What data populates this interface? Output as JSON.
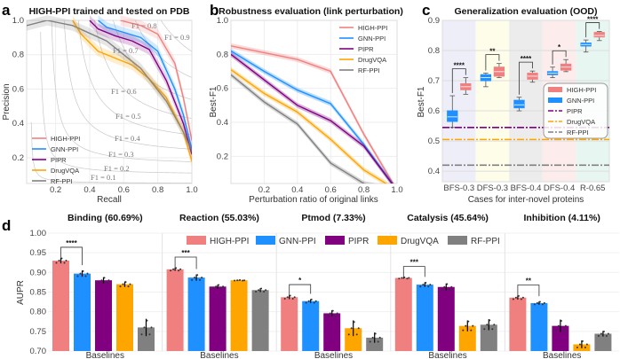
{
  "colors": {
    "HIGH-PPI": "#f08080",
    "GNN-PPI": "#1e90ff",
    "PIPR": "#800080",
    "DrugVQA": "#ffa500",
    "RF-PPI": "#808080"
  },
  "chart_data": [
    {
      "panel": "a",
      "type": "line",
      "title": "HIGH-PPI trained and tested on PDB",
      "xlabel": "Recall",
      "ylabel": "Precision",
      "xlim": [
        0.03,
        1.0
      ],
      "ylim": [
        0.05,
        1.0
      ],
      "xticks": [
        "0.2",
        "0.4",
        "0.6",
        "0.8",
        "1.0"
      ],
      "yticks": [
        "0.2",
        "0.4",
        "0.6",
        "0.8",
        "1.0"
      ],
      "grid": true,
      "legend": "bottom-left",
      "iso_f1": [
        "0.1",
        "0.2",
        "0.3",
        "0.4",
        "0.5",
        "0.6",
        "0.7",
        "0.8",
        "0.9"
      ],
      "iso_f1_prefix": "F1 = ",
      "series": [
        {
          "name": "HIGH-PPI",
          "x": [
            0.58,
            0.7,
            0.8,
            0.9,
            0.95,
            1.0
          ],
          "y": [
            1.0,
            0.97,
            0.92,
            0.75,
            0.55,
            0.3
          ]
        },
        {
          "name": "GNN-PPI",
          "x": [
            0.45,
            0.5,
            0.6,
            0.7,
            0.8,
            0.9,
            0.95,
            1.0
          ],
          "y": [
            1.0,
            0.96,
            0.93,
            0.9,
            0.82,
            0.6,
            0.45,
            0.25
          ]
        },
        {
          "name": "PIPR",
          "x": [
            0.4,
            0.45,
            0.55,
            0.65,
            0.75,
            0.85,
            0.95,
            1.0
          ],
          "y": [
            1.0,
            0.95,
            0.91,
            0.88,
            0.83,
            0.65,
            0.4,
            0.22
          ]
        },
        {
          "name": "DrugVQA",
          "x": [
            0.3,
            0.35,
            0.45,
            0.55,
            0.65,
            0.75,
            0.85,
            0.95,
            1.0
          ],
          "y": [
            1.0,
            0.92,
            0.82,
            0.78,
            0.74,
            0.66,
            0.55,
            0.35,
            0.18
          ]
        },
        {
          "name": "RF-PPI",
          "x": [
            0.03,
            0.15,
            0.3,
            0.5,
            0.7,
            0.85,
            0.95,
            1.0
          ],
          "y": [
            0.97,
            1.0,
            0.97,
            0.88,
            0.72,
            0.53,
            0.35,
            0.24
          ]
        }
      ]
    },
    {
      "panel": "b",
      "type": "line",
      "title": "Robustness evaluation (link perturbation)",
      "xlabel": "Perturbation ratio of original links",
      "ylabel": "Best-F1",
      "xlim": [
        0,
        1
      ],
      "ylim": [
        0.04,
        1.0
      ],
      "xticks": [
        "0.2",
        "0.4",
        "0.6",
        "0.8",
        "1.0"
      ],
      "yticks": [
        "0.2",
        "0.4",
        "0.6",
        "0.8",
        "1.0"
      ],
      "grid": true,
      "legend": "top-right",
      "x": [
        0,
        0.2,
        0.4,
        0.6,
        0.8,
        1.0
      ],
      "series": [
        {
          "name": "HIGH-PPI",
          "values": [
            0.85,
            0.81,
            0.77,
            0.7,
            0.33,
            0.0
          ]
        },
        {
          "name": "GNN-PPI",
          "values": [
            0.82,
            0.7,
            0.59,
            0.51,
            0.27,
            0.0
          ]
        },
        {
          "name": "PIPR",
          "values": [
            0.8,
            0.65,
            0.5,
            0.41,
            0.26,
            0.0
          ]
        },
        {
          "name": "DrugVQA",
          "values": [
            0.71,
            0.57,
            0.46,
            0.3,
            0.12,
            0.0
          ]
        },
        {
          "name": "RF-PPI",
          "values": [
            0.68,
            0.52,
            0.39,
            0.16,
            0.04,
            0.0
          ]
        }
      ]
    },
    {
      "panel": "c",
      "type": "box",
      "title": "Generalization evaluation (OOD)",
      "xlabel": "Cases for inter-novel proteins",
      "ylabel": "Best-F1",
      "ylim": [
        0.365,
        0.9
      ],
      "yticks": [
        "0.4",
        "0.5",
        "0.6",
        "0.7",
        "0.8",
        "0.9"
      ],
      "categories": [
        "BFS-0.3",
        "DFS-0.3",
        "BFS-0.4",
        "DFS-0.4",
        "R-0.65"
      ],
      "category_bg": [
        "#eeeef8",
        "#fdfdea",
        "#ececec",
        "#fcecec",
        "#e8f6f2"
      ],
      "legend": "center-right",
      "boxes": [
        {
          "name": "GNN-PPI",
          "q1": [
            0.565,
            0.7,
            0.61,
            0.72,
            0.815
          ],
          "median": [
            0.58,
            0.71,
            0.62,
            0.725,
            0.82
          ],
          "q3": [
            0.6,
            0.72,
            0.635,
            0.73,
            0.825
          ],
          "lo": [
            0.545,
            0.68,
            0.6,
            0.71,
            0.795
          ],
          "hi": [
            0.65,
            0.725,
            0.645,
            0.745,
            0.835
          ]
        },
        {
          "name": "HIGH-PPI",
          "q1": [
            0.67,
            0.715,
            0.705,
            0.735,
            0.845
          ],
          "median": [
            0.68,
            0.73,
            0.715,
            0.745,
            0.85
          ],
          "q3": [
            0.69,
            0.745,
            0.725,
            0.755,
            0.86
          ],
          "lo": [
            0.655,
            0.71,
            0.695,
            0.73,
            0.833
          ],
          "hi": [
            0.71,
            0.757,
            0.732,
            0.77,
            0.863
          ]
        }
      ],
      "hlines": [
        {
          "name": "PIPR",
          "value": 0.545
        },
        {
          "name": "DrugVQA",
          "value": 0.505
        },
        {
          "name": "RF-PPI",
          "value": 0.42
        }
      ],
      "significance": [
        "****",
        "**",
        "****",
        "*",
        "****"
      ]
    },
    {
      "panel": "d",
      "type": "bar",
      "ylabel": "AUPR",
      "ylim": [
        0.7,
        1.0
      ],
      "yticks": [
        "0.70",
        "0.75",
        "0.80",
        "0.85",
        "0.90",
        "0.95",
        "1.00"
      ],
      "legend": "top",
      "series_names": [
        "HIGH-PPI",
        "GNN-PPI",
        "PIPR",
        "DrugVQA",
        "RF-PPI"
      ],
      "group_xlabel": "Baselines",
      "groups": [
        {
          "title": "Binding (60.69%)",
          "values": [
            0.93,
            0.897,
            0.88,
            0.87,
            0.76
          ],
          "err": [
            0.007,
            0.008,
            0.008,
            0.007,
            0.022
          ],
          "significance": "****"
        },
        {
          "title": "Reaction (55.03%)",
          "values": [
            0.908,
            0.887,
            0.864,
            0.88,
            0.855
          ],
          "err": [
            0.004,
            0.008,
            0.005,
            0.001,
            0.005
          ],
          "significance": "***"
        },
        {
          "title": "Ptmod (7.33%)",
          "values": [
            0.837,
            0.827,
            0.796,
            0.758,
            0.734
          ],
          "err": [
            0.005,
            0.005,
            0.008,
            0.02,
            0.013
          ],
          "significance": "*"
        },
        {
          "title": "Catalysis (45.64%)",
          "values": [
            0.886,
            0.869,
            0.863,
            0.764,
            0.767
          ],
          "err": [
            0.002,
            0.006,
            0.009,
            0.014,
            0.014
          ],
          "significance": "***"
        },
        {
          "title": "Inhibition (4.11%)",
          "values": [
            0.836,
            0.822,
            0.764,
            0.717,
            0.744
          ],
          "err": [
            0.005,
            0.004,
            0.016,
            0.01,
            0.007
          ],
          "significance": "**"
        }
      ]
    }
  ],
  "panel_labels": [
    "a",
    "b",
    "c",
    "d"
  ]
}
